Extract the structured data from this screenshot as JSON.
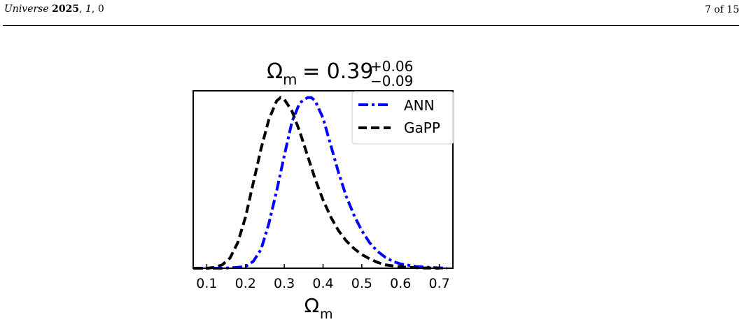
{
  "header": {
    "journal": "Universe",
    "year": "2025",
    "volume": "1",
    "article": "0",
    "page": "7 of 15"
  },
  "chart_data": {
    "type": "line",
    "title_symbol": "Ω",
    "title_subscript": "m",
    "title_value": "= 0.39",
    "title_upper": "+0.06",
    "title_lower": "−0.09",
    "xlabel_symbol": "Ω",
    "xlabel_subscript": "m",
    "ylabel": "",
    "xlim": [
      0.065,
      0.735
    ],
    "ylim": [
      0,
      1.04
    ],
    "xticks": [
      0.1,
      0.2,
      0.3,
      0.4,
      0.5,
      0.6,
      0.7
    ],
    "xtick_labels": [
      "0.1",
      "0.2",
      "0.3",
      "0.4",
      "0.5",
      "0.6",
      "0.7"
    ],
    "legend_position": "top-right",
    "grid": false,
    "series": [
      {
        "name": "ANN",
        "color": "#0000ff",
        "style": "dash-dot",
        "x": [
          0.065,
          0.14,
          0.18,
          0.2,
          0.22,
          0.24,
          0.26,
          0.28,
          0.3,
          0.32,
          0.34,
          0.36,
          0.37,
          0.38,
          0.4,
          0.42,
          0.44,
          0.46,
          0.48,
          0.5,
          0.52,
          0.54,
          0.56,
          0.58,
          0.6,
          0.64,
          0.68,
          0.72
        ],
        "y": [
          0.0,
          0.0,
          0.005,
          0.01,
          0.04,
          0.11,
          0.26,
          0.45,
          0.66,
          0.86,
          0.97,
          1.0,
          1.0,
          0.98,
          0.88,
          0.72,
          0.56,
          0.42,
          0.31,
          0.22,
          0.15,
          0.1,
          0.065,
          0.04,
          0.025,
          0.01,
          0.004,
          0.0
        ]
      },
      {
        "name": "GaPP",
        "color": "#000000",
        "style": "dashed",
        "x": [
          0.065,
          0.1,
          0.12,
          0.14,
          0.16,
          0.18,
          0.2,
          0.22,
          0.24,
          0.26,
          0.28,
          0.29,
          0.3,
          0.32,
          0.34,
          0.36,
          0.38,
          0.4,
          0.42,
          0.44,
          0.46,
          0.48,
          0.5,
          0.52,
          0.54,
          0.56,
          0.6,
          0.65,
          0.7
        ],
        "y": [
          0.0,
          0.0,
          0.005,
          0.02,
          0.06,
          0.15,
          0.3,
          0.5,
          0.7,
          0.87,
          0.98,
          1.0,
          0.99,
          0.92,
          0.8,
          0.66,
          0.52,
          0.4,
          0.3,
          0.22,
          0.16,
          0.115,
          0.08,
          0.055,
          0.035,
          0.02,
          0.008,
          0.002,
          0.0
        ]
      }
    ]
  }
}
